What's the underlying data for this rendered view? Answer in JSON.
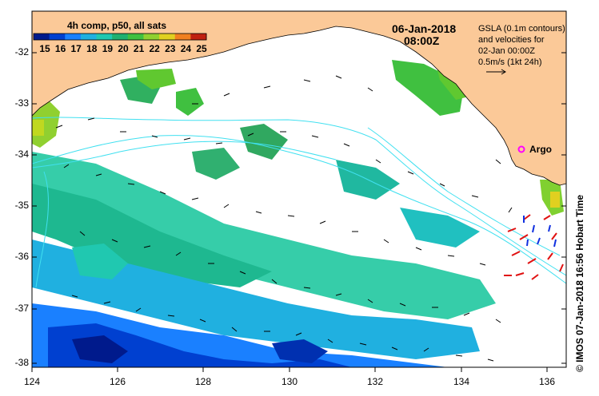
{
  "title": {
    "date": "06-Jan-2018",
    "time": "08:00Z"
  },
  "colorbar": {
    "label": "4h comp, p50, all sats",
    "ticks": [
      "15",
      "16",
      "17",
      "18",
      "19",
      "20",
      "21",
      "22",
      "23",
      "24",
      "25"
    ],
    "colors": [
      "#001a8c",
      "#0040d0",
      "#1a80ff",
      "#20b0e0",
      "#20c8b0",
      "#20b070",
      "#40c040",
      "#90d030",
      "#e0d020",
      "#f08020",
      "#c02010"
    ]
  },
  "legend": {
    "line1": "GSLA (0.1m contours)",
    "line2": "and velocities for",
    "line3": "02-Jan 00:00Z",
    "line4": "0.5m/s (1kt 24h)"
  },
  "argo": {
    "label": "Argo",
    "color": "#ff00ff"
  },
  "axes": {
    "y_ticks": [
      "-32",
      "-33",
      "-34",
      "-35",
      "-36",
      "-37",
      "-38"
    ],
    "x_ticks": [
      "124",
      "126",
      "128",
      "130",
      "132",
      "134",
      "136"
    ]
  },
  "credit": "© IMOS 07-Jan-2018 16:56 Hobart Time",
  "colors": {
    "land": "#fbc998",
    "ocean": "#ffffff",
    "contour": "#40e0f0",
    "arrow_warm": "#e01010",
    "arrow_cool": "#1030e0"
  }
}
